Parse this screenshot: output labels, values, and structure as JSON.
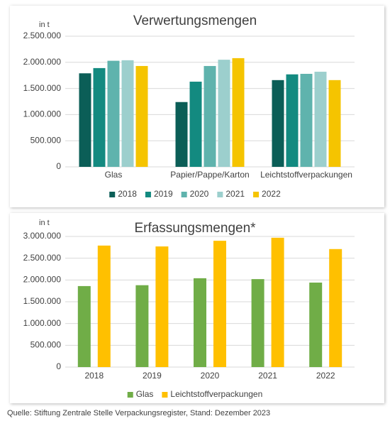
{
  "chart_data": [
    {
      "type": "bar",
      "title": "Verwertungsmengen",
      "y_label": "in t",
      "categories": [
        "Glas",
        "Papier/Pappe/Karton",
        "Leichtstoffverpackungen"
      ],
      "series": [
        {
          "name": "2018",
          "color": "#0b5e57",
          "values": [
            1790000,
            1240000,
            1660000
          ]
        },
        {
          "name": "2019",
          "color": "#138a80",
          "values": [
            1890000,
            1630000,
            1770000
          ]
        },
        {
          "name": "2020",
          "color": "#5fb3ad",
          "values": [
            2030000,
            1930000,
            1780000
          ]
        },
        {
          "name": "2021",
          "color": "#9ccfcd",
          "values": [
            2040000,
            2050000,
            1820000
          ]
        },
        {
          "name": "2022",
          "color": "#f5c400",
          "values": [
            1930000,
            2080000,
            1660000
          ]
        }
      ],
      "ylim": [
        0,
        2500000
      ],
      "yticks": [
        0,
        {
          "value": 500000,
          "label": "500.000"
        },
        {
          "value": 1000000,
          "label": "1.000.000"
        },
        {
          "value": 1500000,
          "label": "1.500.000"
        },
        {
          "value": 2000000,
          "label": "2.000.000"
        },
        {
          "value": 2500000,
          "label": "2.500.000"
        }
      ],
      "grid": true,
      "legend": "bottom"
    },
    {
      "type": "bar",
      "title": "Erfassungsmengen*",
      "y_label": "in t",
      "categories": [
        "2018",
        "2019",
        "2020",
        "2021",
        "2022"
      ],
      "series": [
        {
          "name": "Glas",
          "color": "#70ad47",
          "values": [
            1860000,
            1880000,
            2040000,
            2020000,
            1940000
          ]
        },
        {
          "name": "Leichtstoffverpackungen",
          "color": "#ffc000",
          "values": [
            2790000,
            2770000,
            2900000,
            2970000,
            2710000
          ]
        }
      ],
      "ylim": [
        0,
        3000000
      ],
      "yticks": [
        0,
        {
          "value": 500000,
          "label": "500.000"
        },
        {
          "value": 1000000,
          "label": "1.000.000"
        },
        {
          "value": 1500000,
          "label": "1.500.000"
        },
        {
          "value": 2000000,
          "label": "2.000.000"
        },
        {
          "value": 2500000,
          "label": "2.500.000"
        },
        {
          "value": 3000000,
          "label": "3.000.000"
        }
      ],
      "grid": true,
      "legend": "bottom"
    }
  ],
  "source": "Quelle: Stiftung Zentrale Stelle Verpackungsregister, Stand: Dezember 2023"
}
